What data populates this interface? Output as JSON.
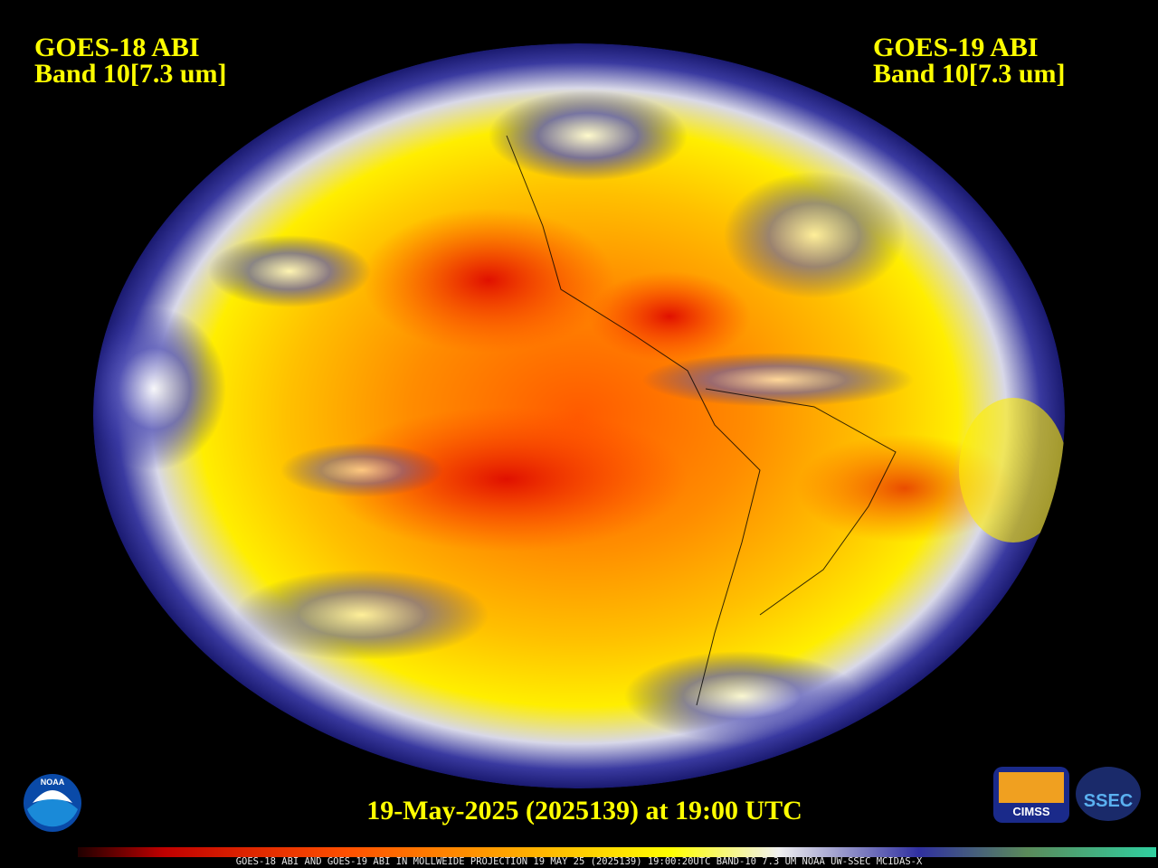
{
  "header": {
    "left": {
      "satellite": "GOES-18 ABI",
      "band": "Band 10[7.3 um]"
    },
    "right": {
      "satellite": "GOES-19 ABI",
      "band": "Band 10[7.3 um]"
    }
  },
  "timestamp": "19-May-2025 (2025139) at 19:00 UTC",
  "footer": "GOES-18 ABI AND GOES-19 ABI IN MOLLWEIDE PROJECTION 19 MAY 25 (2025139) 19:00:20UTC BAND-10 7.3 UM NOAA UW-SSEC MCIDAS-X",
  "logos": [
    "NOAA",
    "CIMSS",
    "SSEC"
  ]
}
